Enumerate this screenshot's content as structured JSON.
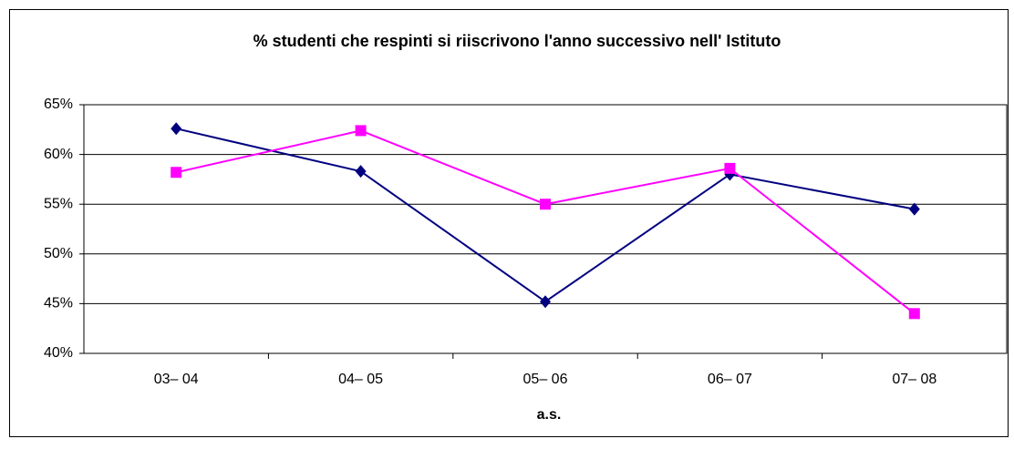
{
  "chart_data": {
    "type": "line",
    "title": "% studenti che respinti si riiscrivono l'anno successivo nell' Istituto",
    "x_label": "a.s.",
    "categories": [
      "03– 04",
      "04– 05",
      "05– 06",
      "06– 07",
      "07– 08"
    ],
    "series": [
      {
        "color": "#000080",
        "marker": "diamond",
        "values": [
          62.6,
          58.3,
          45.2,
          58.0,
          54.5
        ]
      },
      {
        "color": "#ff00ff",
        "marker": "square",
        "values": [
          58.2,
          62.4,
          55.0,
          58.6,
          44.0
        ]
      }
    ],
    "ylim": [
      40,
      65
    ],
    "yticks": [
      {
        "value": 40,
        "label": "40%"
      },
      {
        "value": 45,
        "label": "45%"
      },
      {
        "value": 50,
        "label": "50%"
      },
      {
        "value": 55,
        "label": "55%"
      },
      {
        "value": 60,
        "label": "60%"
      },
      {
        "value": 65,
        "label": "65%"
      }
    ],
    "grid": true
  }
}
